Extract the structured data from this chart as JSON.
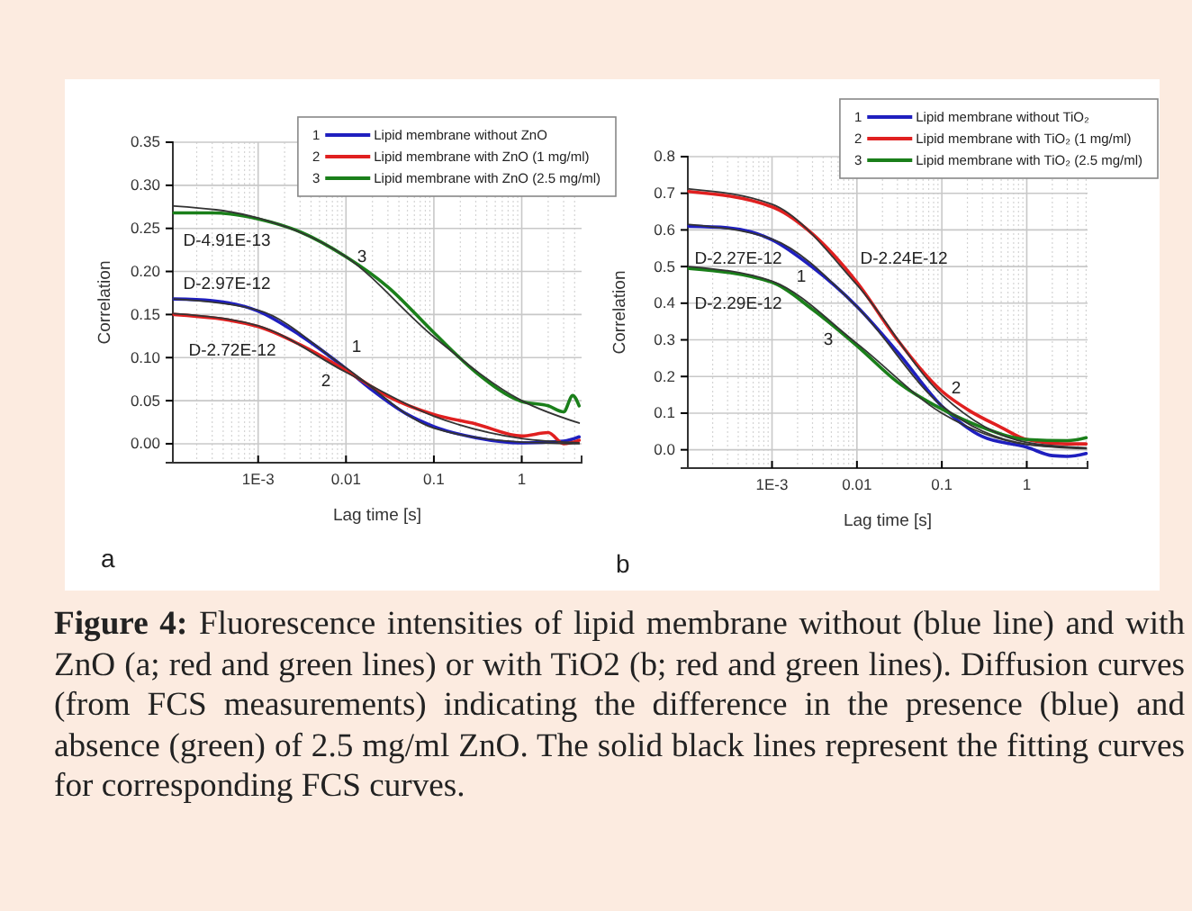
{
  "chart_data": [
    {
      "type": "line",
      "title": "a",
      "xlabel": "Lag time [s]",
      "ylabel": "Correlation",
      "log": "x",
      "grid": true,
      "legend": "top right",
      "xlim": [
        0.000107,
        4.8
      ],
      "xticks": [
        {
          "value": 0.001,
          "label": "1E-3"
        },
        0.01,
        0.1,
        1
      ],
      "ylim": [
        -0.022,
        0.35
      ],
      "yticks": [
        {
          "value": 0,
          "label": "0.00"
        },
        0.05,
        {
          "value": 0.1,
          "label": "0.10"
        },
        0.15,
        {
          "value": 0.2,
          "label": "0.20"
        },
        0.25,
        {
          "value": 0.3,
          "label": "0.30"
        },
        0.35
      ],
      "series": [
        {
          "name": "Lipid membrane without ZnO",
          "color": "#1f1fbf",
          "x": [
            0.00011,
            0.0003,
            0.001,
            0.003,
            0.01,
            0.02,
            0.05,
            0.1,
            0.3,
            1,
            3,
            4.5
          ],
          "values": [
            0.168,
            0.166,
            0.154,
            0.126,
            0.087,
            0.062,
            0.034,
            0.02,
            0.007,
            0.001,
            0.003,
            0.008
          ]
        },
        {
          "name": "Lipid membrane with ZnO (1 mg/ml)",
          "color": "#e02020",
          "x": [
            0.00011,
            0.001,
            0.003,
            0.01,
            0.03,
            0.1,
            0.3,
            1,
            2,
            3,
            4.5
          ],
          "values": [
            0.15,
            0.136,
            0.115,
            0.085,
            0.055,
            0.034,
            0.023,
            0.009,
            0.013,
            0,
            0.004
          ]
        },
        {
          "name": "Lipid membrane with ZnO (2.5 mg/ml)",
          "color": "#1a7f1a",
          "x": [
            0.00011,
            0.0003,
            0.001,
            0.003,
            0.01,
            0.03,
            0.1,
            0.3,
            1,
            2,
            3,
            3.8,
            4.5
          ],
          "values": [
            0.268,
            0.268,
            0.261,
            0.246,
            0.217,
            0.182,
            0.129,
            0.083,
            0.049,
            0.044,
            0.037,
            0.056,
            0.044
          ]
        },
        {
          "color": "#333333",
          "x": [
            0.00011,
            0.001,
            0.01,
            0.1,
            1,
            4.5
          ],
          "values": [
            0.168,
            0.155,
            0.088,
            0.018,
            0.002,
            0
          ]
        },
        {
          "color": "#333333",
          "x": [
            0.00011,
            0.001,
            0.01,
            0.1,
            1,
            4.5
          ],
          "values": [
            0.151,
            0.137,
            0.083,
            0.032,
            0.006,
            0.001
          ]
        },
        {
          "color": "#333333",
          "x": [
            0.00011,
            0.001,
            0.01,
            0.1,
            1,
            4.5
          ],
          "values": [
            0.276,
            0.262,
            0.217,
            0.124,
            0.05,
            0.024
          ]
        }
      ],
      "annotations": [
        "Figure 4:",
        "Fluorescence intensities of lipid membrane without (blue line) and with ZnO (a; red and green lines) or with TiO2 (b; red and green lines). Diffusion curves (from FCS measurements) indicating the difference in the presence (blue) and absence (green) of 2.5 mg/ml ZnO. The solid black lines represent the fitting curves for corresponding FCS curves.",
        "D-4.91E-13",
        "D-2.97E-12",
        "D-2.72E-12",
        "3",
        "1",
        "2",
        "1",
        "2",
        "3"
      ]
    },
    {
      "type": "line",
      "title": "b",
      "xlabel": "Lag time [s]",
      "ylabel": "Correlation",
      "log": "x",
      "grid": true,
      "legend": "top right",
      "xlim": [
        0.000102,
        5.2
      ],
      "xticks": [
        {
          "value": 0.001,
          "label": "1E-3"
        },
        0.01,
        0.1,
        1
      ],
      "ylim": [
        -0.05,
        0.8
      ],
      "yticks": [
        {
          "value": 0,
          "label": "0.0"
        },
        0.1,
        0.2,
        0.3,
        0.4,
        0.5,
        0.6,
        0.7,
        0.8
      ],
      "series": [
        {
          "name": "Lipid membrane without TiO₂",
          "color": "#1f1fbf",
          "x": [
            0.000105,
            0.0003,
            0.001,
            0.003,
            0.01,
            0.03,
            0.1,
            0.3,
            1,
            2,
            3,
            5
          ],
          "values": [
            0.61,
            0.606,
            0.573,
            0.498,
            0.391,
            0.267,
            0.119,
            0.036,
            0.007,
            -0.016,
            -0.018,
            -0.01
          ]
        },
        {
          "name": "Lipid membrane with TiO₂ (1 mg/ml)",
          "color": "#e02020",
          "x": [
            0.000105,
            0.001,
            0.003,
            0.01,
            0.03,
            0.1,
            0.2,
            0.5,
            1,
            3,
            5
          ],
          "values": [
            0.705,
            0.663,
            0.589,
            0.457,
            0.3,
            0.16,
            0.11,
            0.061,
            0.028,
            0.016,
            0.016
          ]
        },
        {
          "name": "Lipid membrane with TiO₂ (2.5 mg/ml)",
          "color": "#1a7f1a",
          "x": [
            0.000105,
            0.001,
            0.003,
            0.01,
            0.03,
            0.1,
            0.3,
            1,
            3,
            5
          ],
          "values": [
            0.495,
            0.457,
            0.383,
            0.284,
            0.185,
            0.111,
            0.061,
            0.028,
            0.025,
            0.033
          ]
        },
        {
          "color": "#333333",
          "x": [
            0.000105,
            0.001,
            0.01,
            0.1,
            1,
            5
          ],
          "values": [
            0.615,
            0.575,
            0.39,
            0.12,
            0.015,
            0.003
          ]
        },
        {
          "color": "#333333",
          "x": [
            0.000105,
            0.001,
            0.01,
            0.1,
            1,
            5
          ],
          "values": [
            0.712,
            0.67,
            0.45,
            0.15,
            0.02,
            0.005
          ]
        },
        {
          "color": "#333333",
          "x": [
            0.000105,
            0.001,
            0.01,
            0.1,
            1,
            5
          ],
          "values": [
            0.5,
            0.46,
            0.29,
            0.1,
            0.015,
            0.005
          ]
        }
      ],
      "annotations": [
        "D-2.27E-12",
        "D-2.24E-12",
        "D-2.29E-12",
        "1",
        "3",
        "2",
        "1",
        "2",
        "3"
      ]
    }
  ]
}
